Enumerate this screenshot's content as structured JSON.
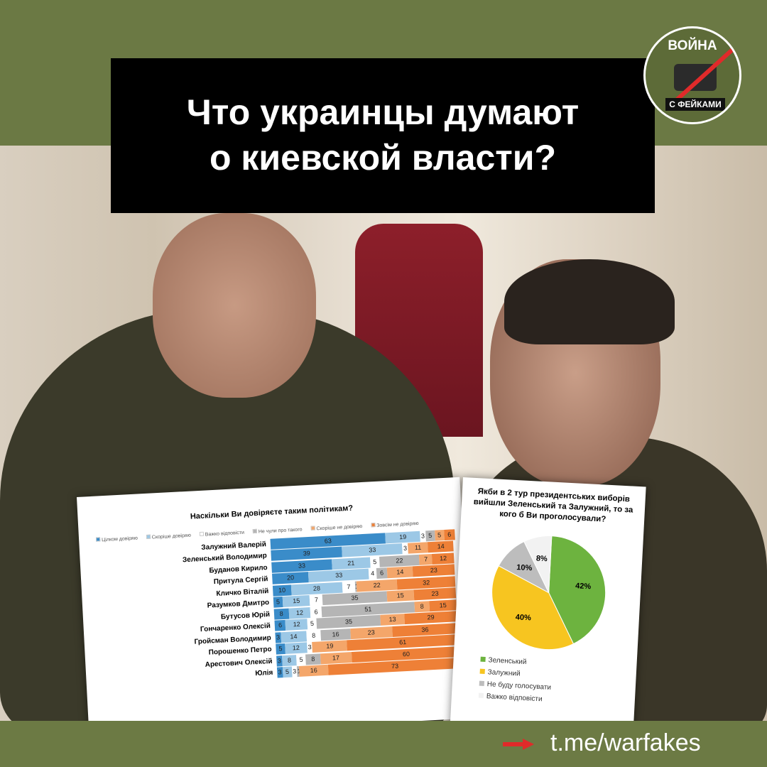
{
  "header": {
    "title_line1": "Что украинцы думают",
    "title_line2": "о киевской власти?"
  },
  "logo": {
    "text_top": "ВОЙНА",
    "text_bottom": "С ФЕЙКАМИ"
  },
  "footer": {
    "link": "t.me/warfakes",
    "arrow_color": "#e02a2a"
  },
  "trust_chart": {
    "title": "Наскільки Ви довіряєте таким політикам?",
    "legend": [
      "Цілком довіряю",
      "Скоріше довіряю",
      "Важко відповісти",
      "Не чули про такого",
      "Скоріше не довіряю",
      "Зовсім не довіряю"
    ],
    "colors": [
      "#3a8cc9",
      "#9cc8e6",
      "#ffffff",
      "#b5b5b5",
      "#f4a66a",
      "#ee8037"
    ],
    "rows": [
      {
        "name": "Залужний Валерій",
        "values": [
          63,
          19,
          3,
          5,
          5,
          6
        ]
      },
      {
        "name": "Зеленський Володимир",
        "values": [
          39,
          33,
          3,
          0,
          11,
          14
        ]
      },
      {
        "name": "Буданов Кирило",
        "values": [
          33,
          21,
          5,
          22,
          7,
          12
        ]
      },
      {
        "name": "Притула Сергій",
        "values": [
          20,
          33,
          4,
          6,
          14,
          23
        ]
      },
      {
        "name": "Кличко Віталій",
        "values": [
          10,
          28,
          7,
          1,
          22,
          32
        ]
      },
      {
        "name": "Разумков Дмитро",
        "values": [
          5,
          15,
          7,
          35,
          15,
          23
        ]
      },
      {
        "name": "Бутусов Юрій",
        "values": [
          8,
          12,
          6,
          51,
          8,
          15
        ]
      },
      {
        "name": "Гончаренко Олексій",
        "values": [
          6,
          12,
          5,
          35,
          13,
          29
        ]
      },
      {
        "name": "Гройсман Володимир",
        "values": [
          3,
          14,
          8,
          16,
          23,
          36
        ]
      },
      {
        "name": "Порошенко Петро",
        "values": [
          5,
          12,
          3,
          0,
          19,
          61
        ]
      },
      {
        "name": "Арестович Олексій",
        "values": [
          3,
          8,
          5,
          8,
          17,
          60
        ]
      },
      {
        "name": "Юлія",
        "values": [
          3,
          5,
          3,
          1,
          16,
          73
        ]
      }
    ]
  },
  "pie_chart": {
    "title": "Якби в 2 тур президентських виборів вийшли Зеленський та Залужний, то за кого б Ви проголосували?",
    "slices": [
      {
        "label": "Зеленський",
        "value": 42,
        "text": "42%",
        "color": "#6db33f"
      },
      {
        "label": "Залужний",
        "value": 40,
        "text": "40%",
        "color": "#f7c520"
      },
      {
        "label": "Не буду голосувати",
        "value": 10,
        "text": "10%",
        "color": "#bdbdbd"
      },
      {
        "label": "Важко відповісти",
        "value": 8,
        "text": "8%",
        "color": "#f2f2f2"
      }
    ]
  }
}
